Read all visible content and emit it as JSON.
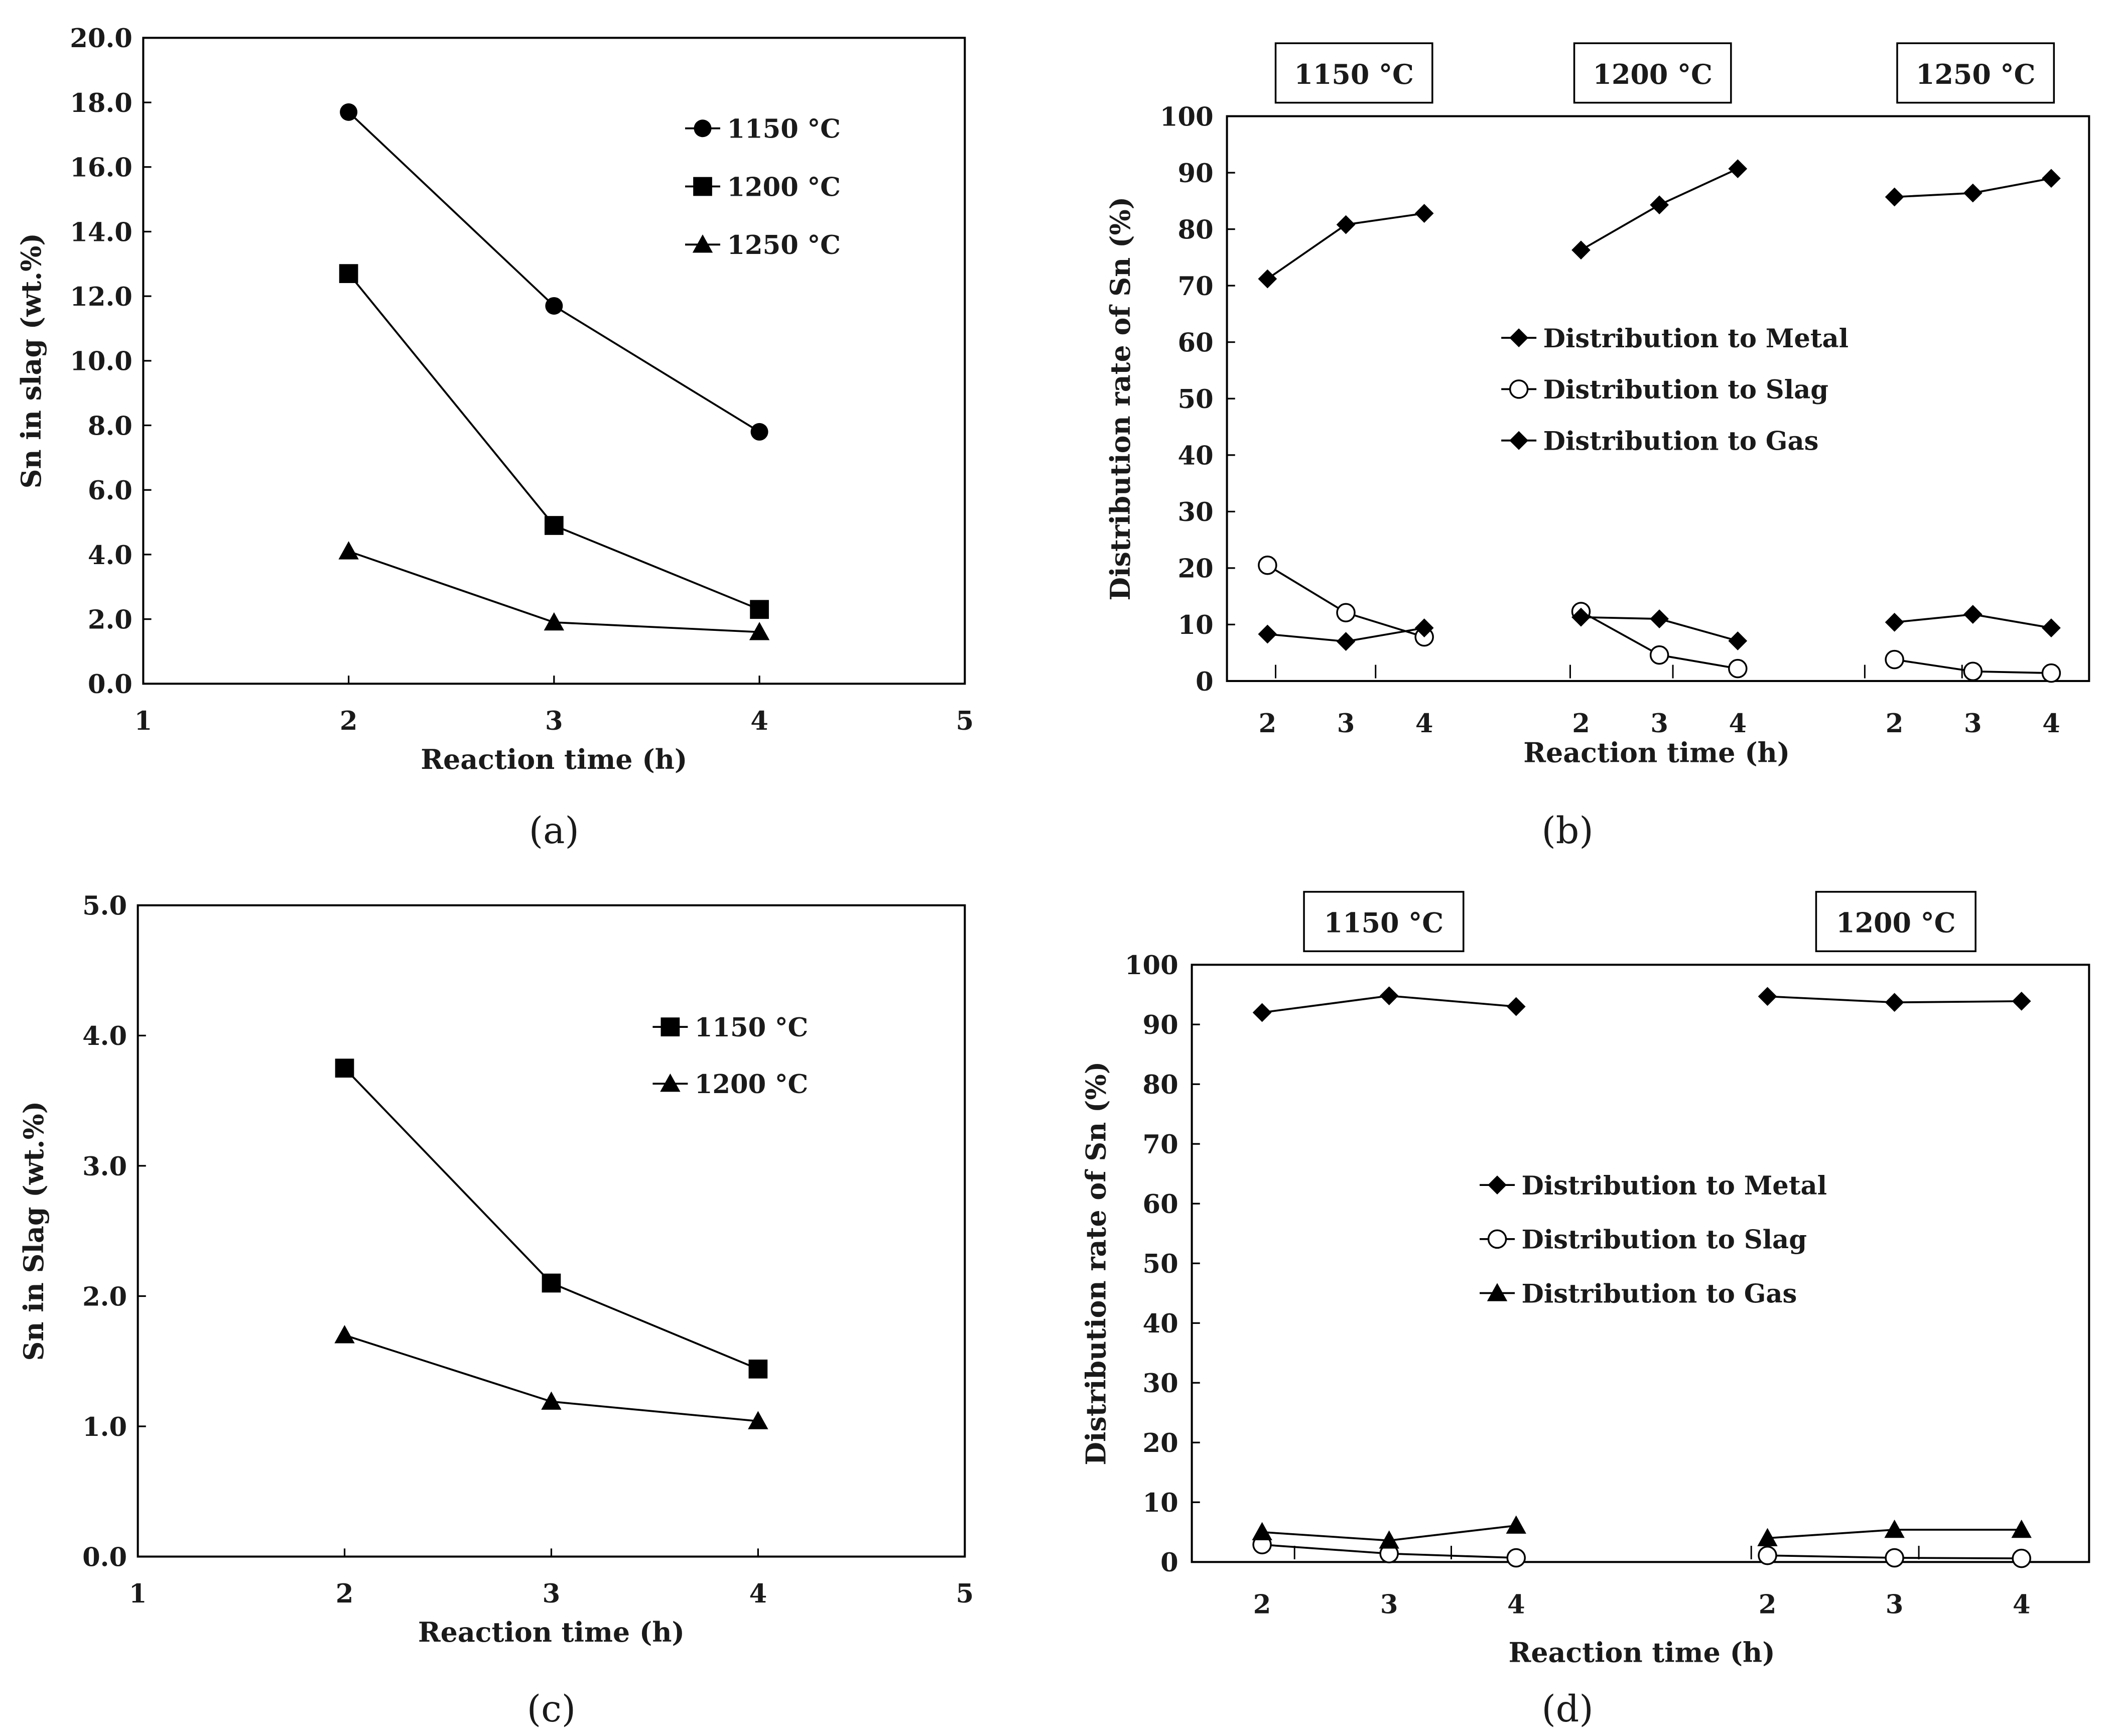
{
  "chart_data": [
    {
      "id": "a",
      "type": "line",
      "caption": "(a)",
      "xlabel": "Reaction time (h)",
      "ylabel": "Sn in slag (wt.%)",
      "xlim": [
        1,
        5
      ],
      "ylim": [
        0,
        20
      ],
      "xticks": [
        "1",
        "2",
        "3",
        "4",
        "5"
      ],
      "yticks": [
        "0.0",
        "2.0",
        "4.0",
        "6.0",
        "8.0",
        "10.0",
        "12.0",
        "14.0",
        "16.0",
        "18.0",
        "20.0"
      ],
      "x": [
        2,
        3,
        4
      ],
      "series": [
        {
          "name": "1150 °C",
          "marker": "circle",
          "values": [
            17.7,
            11.7,
            7.8
          ]
        },
        {
          "name": "1200 °C",
          "marker": "square",
          "values": [
            12.7,
            4.9,
            2.3
          ]
        },
        {
          "name": "1250 °C",
          "marker": "triangle",
          "values": [
            4.1,
            1.9,
            1.6
          ]
        }
      ]
    },
    {
      "id": "b",
      "type": "line",
      "caption": "(b)",
      "xlabel": "Reaction time (h)",
      "ylabel": "Distribution rate of Sn (%)",
      "ylim": [
        0,
        100
      ],
      "yticks": [
        "0",
        "10",
        "20",
        "30",
        "40",
        "50",
        "60",
        "70",
        "80",
        "90",
        "100"
      ],
      "groups": [
        "1150 °C",
        "1200 °C",
        "1250 °C"
      ],
      "group_xticks": [
        "2",
        "3",
        "4"
      ],
      "series": [
        {
          "name": "Distribution to Metal",
          "marker": "diamond",
          "values": [
            [
              71.2,
              80.8,
              82.8
            ],
            [
              76.3,
              84.3,
              90.7
            ],
            [
              85.7,
              86.4,
              89.0
            ]
          ]
        },
        {
          "name": "Distribution to Slag",
          "marker": "open-circle",
          "values": [
            [
              20.5,
              12.1,
              7.8
            ],
            [
              12.3,
              4.6,
              2.2
            ],
            [
              3.8,
              1.7,
              1.4
            ]
          ]
        },
        {
          "name": "Distribution to Gas",
          "marker": "diamond",
          "values": [
            [
              8.3,
              7.0,
              9.4
            ],
            [
              11.3,
              11.0,
              7.1
            ],
            [
              10.4,
              11.8,
              9.4
            ]
          ]
        }
      ]
    },
    {
      "id": "c",
      "type": "line",
      "caption": "(c)",
      "xlabel": "Reaction time (h)",
      "ylabel": "Sn in Slag (wt.%)",
      "xlim": [
        1,
        5
      ],
      "ylim": [
        0,
        5
      ],
      "xticks": [
        "1",
        "2",
        "3",
        "4",
        "5"
      ],
      "yticks": [
        "0.0",
        "1.0",
        "2.0",
        "3.0",
        "4.0",
        "5.0"
      ],
      "x": [
        2,
        3,
        4
      ],
      "series": [
        {
          "name": "1150 °C",
          "marker": "square",
          "values": [
            3.75,
            2.1,
            1.44
          ]
        },
        {
          "name": "1200 °C",
          "marker": "triangle",
          "values": [
            1.7,
            1.19,
            1.04
          ]
        }
      ]
    },
    {
      "id": "d",
      "type": "line",
      "caption": "(d)",
      "xlabel": "Reaction time (h)",
      "ylabel": "Distribution rate of Sn (%)",
      "ylim": [
        0,
        100
      ],
      "yticks": [
        "0",
        "10",
        "20",
        "30",
        "40",
        "50",
        "60",
        "70",
        "80",
        "90",
        "100"
      ],
      "groups": [
        "1150 °C",
        "1200 °C"
      ],
      "group_xticks": [
        "2",
        "3",
        "4"
      ],
      "series": [
        {
          "name": "Distribution to Metal",
          "marker": "diamond",
          "values": [
            [
              92.0,
              94.8,
              93.0
            ],
            [
              94.7,
              93.7,
              93.9
            ]
          ]
        },
        {
          "name": "Distribution to Slag",
          "marker": "open-circle",
          "values": [
            [
              2.9,
              1.4,
              0.7
            ],
            [
              1.1,
              0.7,
              0.6
            ]
          ]
        },
        {
          "name": "Distribution to Gas",
          "marker": "triangle",
          "values": [
            [
              5.0,
              3.6,
              6.1
            ],
            [
              4.0,
              5.4,
              5.4
            ]
          ]
        }
      ]
    }
  ]
}
